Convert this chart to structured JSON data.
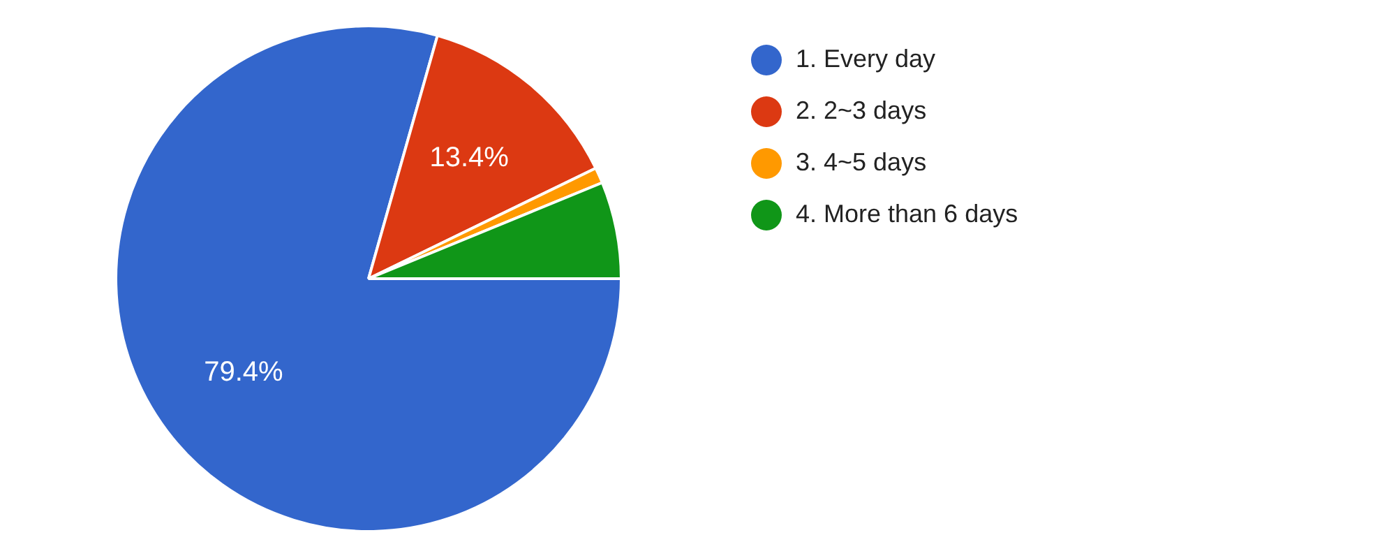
{
  "chart_data": {
    "type": "pie",
    "categories": [
      "1. Every day",
      "2. 2~3 days",
      "3. 4~5 days",
      "4. More than 6 days"
    ],
    "values": [
      79.4,
      13.4,
      1.0,
      6.2
    ],
    "value_labels": [
      "79.4%",
      "13.4%",
      null,
      null
    ],
    "colors": [
      "#3366cc",
      "#dc3912",
      "#ff9900",
      "#109618"
    ],
    "legend": "right"
  }
}
